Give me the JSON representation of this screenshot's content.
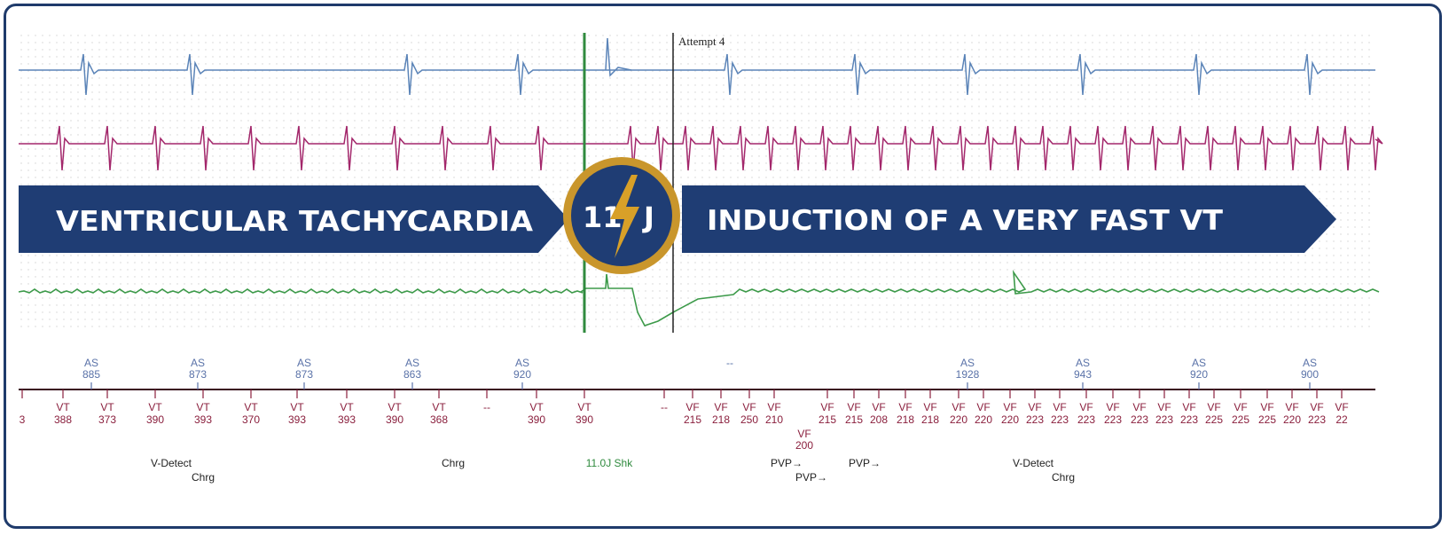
{
  "colors": {
    "frame": "#1f3b6b",
    "banner": "#1f3d74",
    "badge_ring": "#c9962c",
    "bolt": "#d8a028",
    "ecg_blue": "#5b84b8",
    "ecg_magenta": "#a3276b",
    "ecg_green": "#3d9a4a",
    "marker_blue": "#5a72a8",
    "marker_red": "#8a1f3d",
    "shock_green": "#2f8a3e"
  },
  "banner": {
    "left_text": "VENTRICULAR TACHYCARDIA",
    "right_text": "INDUCTION OF A VERY FAST VT",
    "badge_left": "11",
    "badge_right": "J",
    "bolt_icon": "lightning-bolt-icon"
  },
  "trace": {
    "attempt_label": "Attempt 4"
  },
  "atrial_markers": [
    {
      "label": "AS",
      "value": "885"
    },
    {
      "label": "AS",
      "value": "873"
    },
    {
      "label": "AS",
      "value": "873"
    },
    {
      "label": "AS",
      "value": "863"
    },
    {
      "label": "AS",
      "value": "920"
    },
    {
      "label": "--",
      "value": ""
    },
    {
      "label": "AS",
      "value": "1928"
    },
    {
      "label": "AS",
      "value": "943"
    },
    {
      "label": "AS",
      "value": "920"
    },
    {
      "label": "AS",
      "value": "900"
    }
  ],
  "ventricular_markers": [
    {
      "label": "",
      "value": "3"
    },
    {
      "label": "VT",
      "value": "388"
    },
    {
      "label": "VT",
      "value": "373"
    },
    {
      "label": "VT",
      "value": "390"
    },
    {
      "label": "VT",
      "value": "393"
    },
    {
      "label": "VT",
      "value": "370"
    },
    {
      "label": "VT",
      "value": "393"
    },
    {
      "label": "VT",
      "value": "393"
    },
    {
      "label": "VT",
      "value": "390"
    },
    {
      "label": "VT",
      "value": "368"
    },
    {
      "label": "--",
      "value": ""
    },
    {
      "label": "VT",
      "value": "390"
    },
    {
      "label": "VT",
      "value": "390"
    },
    {
      "label": "--",
      "value": ""
    },
    {
      "label": "VF",
      "value": "215"
    },
    {
      "label": "VF",
      "value": "218"
    },
    {
      "label": "VF",
      "value": "250"
    },
    {
      "label": "VF",
      "value": "210"
    },
    {
      "label": "VF",
      "value": "215"
    },
    {
      "label": "VF",
      "value": "215"
    },
    {
      "label": "VF",
      "value": "208"
    },
    {
      "label": "VF",
      "value": "218"
    },
    {
      "label": "VF",
      "value": "218"
    },
    {
      "label": "VF",
      "value": "220"
    },
    {
      "label": "VF",
      "value": "220"
    },
    {
      "label": "VF",
      "value": "220"
    },
    {
      "label": "VF",
      "value": "223"
    },
    {
      "label": "VF",
      "value": "223"
    },
    {
      "label": "VF",
      "value": "223"
    },
    {
      "label": "VF",
      "value": "223"
    },
    {
      "label": "VF",
      "value": "223"
    },
    {
      "label": "VF",
      "value": "223"
    },
    {
      "label": "VF",
      "value": "223"
    },
    {
      "label": "VF",
      "value": "225"
    },
    {
      "label": "VF",
      "value": "225"
    },
    {
      "label": "VF",
      "value": "225"
    },
    {
      "label": "VF",
      "value": "220"
    },
    {
      "label": "VF",
      "value": "223"
    },
    {
      "label": "VF",
      "value": "22"
    }
  ],
  "extra_marker": {
    "label": "VF",
    "value": "200"
  },
  "events": [
    {
      "text": "V-Detect",
      "color": "#222222"
    },
    {
      "text": "Chrg",
      "color": "#222222"
    },
    {
      "text": "Chrg",
      "color": "#222222"
    },
    {
      "text": "11.0J Shk",
      "color": "#2f8a3e"
    },
    {
      "text": "PVP→",
      "color": "#222222"
    },
    {
      "text": "PVP→",
      "color": "#222222"
    },
    {
      "text": "PVP→",
      "color": "#222222"
    },
    {
      "text": "V-Detect",
      "color": "#222222"
    },
    {
      "text": "Chrg",
      "color": "#222222"
    }
  ]
}
